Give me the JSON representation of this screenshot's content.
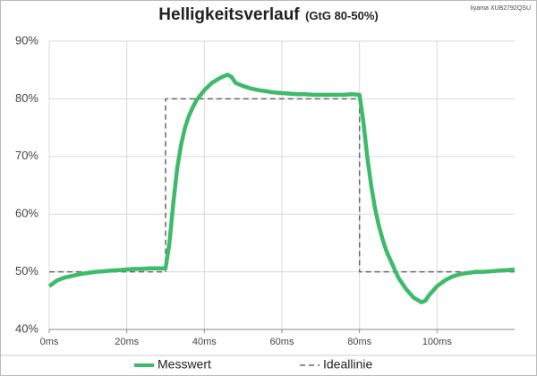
{
  "chart_data": {
    "type": "line",
    "title": "Helligkeitsverlauf",
    "subtitle": "(GtG 80-50%)",
    "annotation": "Iiyama XUB2792QSU",
    "xlim": [
      0,
      120
    ],
    "xticks": [
      {
        "value": 0,
        "label": "0ms"
      },
      {
        "value": 20,
        "label": "20ms"
      },
      {
        "value": 40,
        "label": "40ms"
      },
      {
        "value": 60,
        "label": "60ms"
      },
      {
        "value": 80,
        "label": "80ms"
      },
      {
        "value": 100,
        "label": "100ms"
      }
    ],
    "ylim": [
      40,
      90
    ],
    "yticks": [
      {
        "value": 40,
        "label": "40%"
      },
      {
        "value": 50,
        "label": "50%"
      },
      {
        "value": 60,
        "label": "60%"
      },
      {
        "value": 70,
        "label": "70%"
      },
      {
        "value": 80,
        "label": "80%"
      },
      {
        "value": 90,
        "label": "90%"
      }
    ],
    "grid": true,
    "legend": "bottom",
    "series": [
      {
        "name": "Messwert",
        "color": "#3dbb6a",
        "dash": false,
        "x": [
          0,
          2,
          4,
          6,
          8,
          10,
          12,
          14,
          16,
          18,
          20,
          22,
          24,
          26,
          28,
          30,
          31,
          32,
          33,
          34,
          35,
          36,
          37,
          38,
          40,
          42,
          44,
          46,
          47,
          48,
          50,
          52,
          54,
          56,
          58,
          60,
          62,
          64,
          66,
          68,
          70,
          72,
          74,
          76,
          78,
          80,
          81,
          82,
          83,
          84,
          85,
          86,
          87,
          88,
          89,
          90,
          92,
          94,
          96,
          97,
          98,
          100,
          102,
          104,
          106,
          108,
          110,
          112,
          114,
          116,
          118,
          120
        ],
        "values": [
          47.5,
          48.5,
          49,
          49.3,
          49.6,
          49.8,
          50,
          50.1,
          50.2,
          50.3,
          50.4,
          50.5,
          50.5,
          50.6,
          50.6,
          50.6,
          55,
          62,
          68,
          72,
          75,
          77,
          78.5,
          79.8,
          81.5,
          82.8,
          83.6,
          84.2,
          83.8,
          82.8,
          82.2,
          81.8,
          81.5,
          81.3,
          81.1,
          81,
          80.9,
          80.8,
          80.8,
          80.7,
          80.7,
          80.7,
          80.7,
          80.7,
          80.8,
          80.7,
          76,
          70,
          65,
          61,
          58,
          55.5,
          53.5,
          52,
          50.5,
          49,
          47,
          45.5,
          44.7,
          45,
          46,
          47.5,
          48.5,
          49.2,
          49.6,
          49.8,
          50,
          50,
          50.1,
          50.2,
          50.3,
          50.4
        ]
      },
      {
        "name": "Ideallinie",
        "color": "#666666",
        "dash": true,
        "x": [
          0,
          30,
          30,
          80,
          80,
          120
        ],
        "values": [
          50,
          50,
          80,
          80,
          50,
          50
        ]
      }
    ]
  }
}
